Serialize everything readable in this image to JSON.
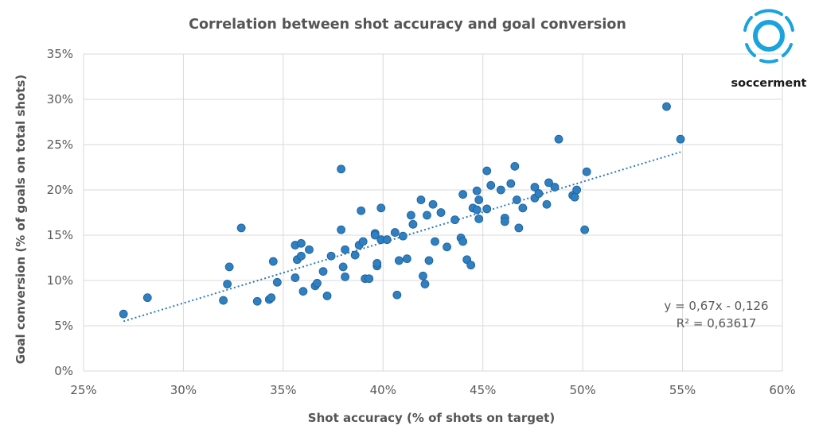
{
  "brand": {
    "name": "soccerment",
    "logo_icon": "soccer-ball-logo-icon",
    "logo_color": "#1aa3de"
  },
  "chart_data": {
    "type": "scatter",
    "title": "Correlation between shot accuracy and goal conversion",
    "xlabel": "Shot accuracy (% of shots on target)",
    "ylabel": "Goal conversion (% of goals on total shots)",
    "xlim": [
      25,
      60
    ],
    "ylim": [
      0,
      35
    ],
    "x_ticks": [
      25,
      30,
      35,
      40,
      45,
      50,
      55,
      60
    ],
    "y_ticks": [
      0,
      5,
      10,
      15,
      20,
      25,
      30,
      35
    ],
    "x_tick_labels": [
      "25%",
      "30%",
      "35%",
      "40%",
      "45%",
      "50%",
      "55%",
      "60%"
    ],
    "y_tick_labels": [
      "0%",
      "5%",
      "10%",
      "15%",
      "20%",
      "25%",
      "30%",
      "35%"
    ],
    "grid": true,
    "point_color": "#2f7fc1",
    "points": [
      [
        27.0,
        6.3
      ],
      [
        28.2,
        8.1
      ],
      [
        32.0,
        7.8
      ],
      [
        32.2,
        9.6
      ],
      [
        32.3,
        11.5
      ],
      [
        32.9,
        15.8
      ],
      [
        33.7,
        7.7
      ],
      [
        34.3,
        7.9
      ],
      [
        34.4,
        8.1
      ],
      [
        34.5,
        12.1
      ],
      [
        34.7,
        9.8
      ],
      [
        35.6,
        13.9
      ],
      [
        35.6,
        10.3
      ],
      [
        35.7,
        12.3
      ],
      [
        35.9,
        12.7
      ],
      [
        35.9,
        14.1
      ],
      [
        36.0,
        8.8
      ],
      [
        36.3,
        13.4
      ],
      [
        36.6,
        9.4
      ],
      [
        36.7,
        9.7
      ],
      [
        37.0,
        11.0
      ],
      [
        37.2,
        8.3
      ],
      [
        37.4,
        12.7
      ],
      [
        37.9,
        15.6
      ],
      [
        37.9,
        22.3
      ],
      [
        38.0,
        11.5
      ],
      [
        38.1,
        13.4
      ],
      [
        38.1,
        10.4
      ],
      [
        38.6,
        12.8
      ],
      [
        38.8,
        13.9
      ],
      [
        38.9,
        17.7
      ],
      [
        39.0,
        14.3
      ],
      [
        39.1,
        10.2
      ],
      [
        39.3,
        10.2
      ],
      [
        39.6,
        15.2
      ],
      [
        39.6,
        15.0
      ],
      [
        39.7,
        11.6
      ],
      [
        39.7,
        11.9
      ],
      [
        39.9,
        18.0
      ],
      [
        39.9,
        14.5
      ],
      [
        40.2,
        14.5
      ],
      [
        40.6,
        15.3
      ],
      [
        40.7,
        8.4
      ],
      [
        40.8,
        12.2
      ],
      [
        41.0,
        14.9
      ],
      [
        41.2,
        12.4
      ],
      [
        41.4,
        17.2
      ],
      [
        41.5,
        16.2
      ],
      [
        41.9,
        18.9
      ],
      [
        42.0,
        10.5
      ],
      [
        42.1,
        9.6
      ],
      [
        42.2,
        17.2
      ],
      [
        42.3,
        12.2
      ],
      [
        42.5,
        18.4
      ],
      [
        42.6,
        14.3
      ],
      [
        42.9,
        17.5
      ],
      [
        43.2,
        13.7
      ],
      [
        43.6,
        16.7
      ],
      [
        43.9,
        14.7
      ],
      [
        44.0,
        19.5
      ],
      [
        44.0,
        14.3
      ],
      [
        44.2,
        12.3
      ],
      [
        44.4,
        11.7
      ],
      [
        44.5,
        18.0
      ],
      [
        44.7,
        17.8
      ],
      [
        44.7,
        19.9
      ],
      [
        44.8,
        18.9
      ],
      [
        44.8,
        16.8
      ],
      [
        45.2,
        22.1
      ],
      [
        45.2,
        17.9
      ],
      [
        45.4,
        20.5
      ],
      [
        45.9,
        20.0
      ],
      [
        46.1,
        16.9
      ],
      [
        46.1,
        16.5
      ],
      [
        46.4,
        20.7
      ],
      [
        46.6,
        22.6
      ],
      [
        46.7,
        18.9
      ],
      [
        46.8,
        15.8
      ],
      [
        47.0,
        18.0
      ],
      [
        47.6,
        19.1
      ],
      [
        47.6,
        20.3
      ],
      [
        47.8,
        19.6
      ],
      [
        48.2,
        18.4
      ],
      [
        48.3,
        20.8
      ],
      [
        48.6,
        20.3
      ],
      [
        48.8,
        25.6
      ],
      [
        49.5,
        19.4
      ],
      [
        49.6,
        19.2
      ],
      [
        49.7,
        20.0
      ],
      [
        50.1,
        15.6
      ],
      [
        50.2,
        22.0
      ],
      [
        54.2,
        29.2
      ],
      [
        54.9,
        25.6
      ]
    ],
    "trendline": {
      "type": "linear",
      "slope": 0.67,
      "intercept": -0.126,
      "x_range": [
        27.0,
        54.9
      ]
    },
    "annotations": [
      "y = 0,67x - 0,126",
      "R² = 0,63617"
    ]
  }
}
